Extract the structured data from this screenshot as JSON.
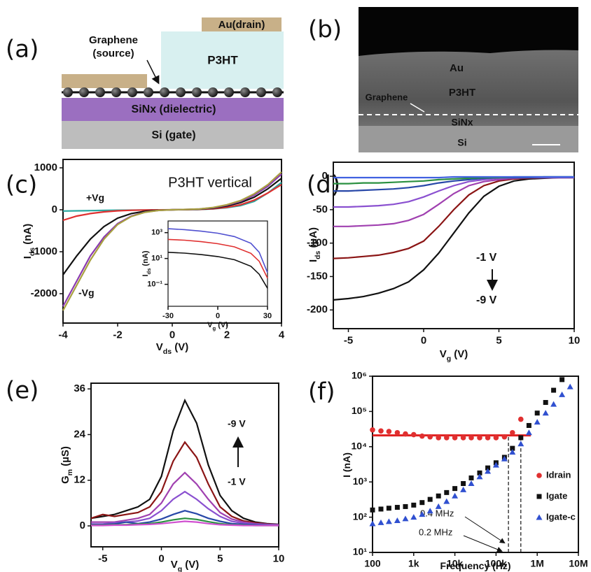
{
  "diagram": {
    "panel": "(a)",
    "drain": "Au(drain)",
    "source": [
      "Graphene",
      "(source)"
    ],
    "organic": "P3HT",
    "dielectric": "SiNx (dielectric)",
    "gate": "Si (gate)"
  },
  "micrograph": {
    "panel": "(b)",
    "layers": [
      "Au",
      "P3HT",
      "Graphene",
      "SiNx",
      "Si"
    ]
  },
  "chart_data": [
    {
      "type": "line",
      "panel": "(c)",
      "xlabel": [
        "V",
        "ds",
        " (V)"
      ],
      "ylabel": [
        "I",
        "ds",
        " (nA)"
      ],
      "annotations": [
        "P3HT vertical",
        "+Vg",
        "-Vg"
      ],
      "x": [
        -4,
        -3.5,
        -3,
        -2.5,
        -2,
        -1.5,
        -1,
        -0.5,
        0,
        0.5,
        1,
        1.5,
        2,
        2.5,
        3,
        3.5,
        4
      ],
      "xlim": [
        -4,
        4
      ],
      "xticks": [
        -4,
        -2,
        0,
        2,
        4
      ],
      "ylim": [
        -2700,
        1200
      ],
      "yticks": [
        -2000,
        -1000,
        0,
        1000
      ],
      "series": [
        {
          "color": "#2aa8a0",
          "values": [
            -30,
            -25,
            -20,
            -15,
            -10,
            -8,
            -5,
            -3,
            0,
            3,
            8,
            20,
            50,
            100,
            200,
            400,
            650
          ]
        },
        {
          "color": "#e03030",
          "values": [
            -250,
            -150,
            -90,
            -50,
            -25,
            -12,
            -5,
            -2,
            0,
            3,
            10,
            25,
            60,
            120,
            230,
            400,
            600
          ]
        },
        {
          "color": "#111111",
          "values": [
            -1550,
            -1100,
            -700,
            -400,
            -200,
            -90,
            -35,
            -10,
            0,
            5,
            15,
            40,
            90,
            170,
            300,
            500,
            750
          ]
        },
        {
          "color": "#8a3ab0",
          "values": [
            -2300,
            -1700,
            -1100,
            -650,
            -330,
            -150,
            -55,
            -15,
            0,
            8,
            20,
            50,
            110,
            200,
            350,
            560,
            850
          ]
        },
        {
          "color": "#a8a040",
          "values": [
            -2400,
            -1800,
            -1200,
            -700,
            -350,
            -160,
            -60,
            -15,
            0,
            8,
            20,
            55,
            120,
            220,
            380,
            600,
            900
          ]
        }
      ]
    },
    {
      "type": "line",
      "log_y": true,
      "xlabel": [
        "V",
        "g",
        " (V)"
      ],
      "ylabel": [
        "I",
        "ds",
        " (nA)"
      ],
      "x": [
        -30,
        -20,
        -10,
        0,
        10,
        20,
        25,
        30
      ],
      "xlim": [
        -30,
        30
      ],
      "xticks": [
        -30,
        0,
        30
      ],
      "ylim": [
        0.002,
        8000
      ],
      "yticks": [
        {
          "value": 0.1,
          "label": "10⁻¹"
        },
        {
          "value": 10,
          "label": "10¹"
        },
        {
          "value": 1000,
          "label": "10³"
        }
      ],
      "series": [
        {
          "color": "#5050d0",
          "values": [
            2000,
            1700,
            1300,
            900,
            500,
            150,
            30,
            0.8
          ]
        },
        {
          "color": "#e03030",
          "values": [
            300,
            260,
            200,
            140,
            80,
            25,
            6,
            0.3
          ]
        },
        {
          "color": "#111111",
          "values": [
            30,
            26,
            20,
            14,
            8,
            2.5,
            0.6,
            0.05
          ]
        }
      ]
    },
    {
      "type": "line",
      "panel": "(d)",
      "xlabel": [
        "V",
        "g",
        " (V)"
      ],
      "ylabel": [
        "I",
        "ds",
        " (µA)"
      ],
      "annotations": [
        "-1 V",
        "-9 V"
      ],
      "x": [
        -6,
        -5,
        -4,
        -3,
        -2,
        -1,
        0,
        1,
        2,
        3,
        4,
        5,
        6,
        7,
        8,
        9,
        10
      ],
      "xlim": [
        -6,
        10
      ],
      "xticks": [
        -5,
        0,
        5,
        10
      ],
      "ylim": [
        -228,
        21
      ],
      "yticks": [
        -200,
        -150,
        -100,
        -50,
        0
      ],
      "series": [
        {
          "color": "#111111",
          "values": [
            -185,
            -183,
            -180,
            -175,
            -168,
            -158,
            -140,
            -115,
            -85,
            -55,
            -30,
            -15,
            -7,
            -4,
            -3,
            -2,
            -2
          ]
        },
        {
          "color": "#8b1515",
          "values": [
            -123,
            -122,
            -120,
            -118,
            -114,
            -108,
            -97,
            -75,
            -50,
            -28,
            -14,
            -7,
            -4,
            -3,
            -2,
            -2,
            -2
          ]
        },
        {
          "color": "#a040b0",
          "values": [
            -75,
            -75,
            -74,
            -73,
            -71,
            -66,
            -57,
            -42,
            -26,
            -14,
            -8,
            -5,
            -3,
            -2,
            -2,
            -2,
            -2
          ]
        },
        {
          "color": "#8a50d0",
          "values": [
            -46,
            -46,
            -45,
            -44,
            -42,
            -38,
            -31,
            -22,
            -14,
            -8,
            -5,
            -3,
            -2,
            -2,
            -2,
            -2,
            -2
          ]
        },
        {
          "color": "#2848a8",
          "values": [
            -22,
            -22,
            -21,
            -20,
            -19,
            -17,
            -14,
            -10,
            -7,
            -5,
            -3,
            -2,
            -2,
            -2,
            -1,
            -1,
            -1
          ]
        },
        {
          "color": "#2a9040",
          "values": [
            -11,
            -11,
            -10,
            -10,
            -9,
            -8,
            -7,
            -5,
            -4,
            -3,
            -2,
            -2,
            -1,
            -1,
            -1,
            -1,
            -1
          ]
        },
        {
          "color": "#4060e0",
          "values": [
            -2,
            -2,
            -2,
            -2,
            -2,
            -2,
            -2,
            -2,
            -1,
            -1,
            -1,
            -1,
            -1,
            -1,
            -1,
            -1,
            -1
          ]
        }
      ]
    },
    {
      "type": "line",
      "panel": "(e)",
      "xlabel": [
        "V",
        "g",
        " (V)"
      ],
      "ylabel": [
        "G",
        "m",
        " (µS)"
      ],
      "annotations": [
        "-9 V",
        "-1 V"
      ],
      "x": [
        -6,
        -5,
        -4,
        -3,
        -2,
        -1,
        0,
        1,
        2,
        3,
        4,
        5,
        6,
        7,
        8,
        9,
        10
      ],
      "xlim": [
        -6,
        10
      ],
      "xticks": [
        -5,
        0,
        5,
        10
      ],
      "ylim": [
        -5.5,
        37.5
      ],
      "yticks": [
        0,
        12,
        24,
        36
      ],
      "series": [
        {
          "color": "#111111",
          "values": [
            2,
            2.5,
            3,
            4,
            5,
            7,
            13,
            25,
            33,
            27,
            16,
            8,
            4,
            2,
            1,
            0.6,
            0.4
          ]
        },
        {
          "color": "#8b1515",
          "values": [
            2,
            3,
            2.5,
            3,
            3.5,
            5,
            9,
            17,
            22,
            18,
            11,
            5,
            2.5,
            1.3,
            0.8,
            0.5,
            0.3
          ]
        },
        {
          "color": "#a040b0",
          "values": [
            1,
            1,
            1,
            1.5,
            2,
            3,
            6,
            11,
            14,
            11,
            7,
            3.5,
            1.8,
            1,
            0.6,
            0.4,
            0.3
          ]
        },
        {
          "color": "#8a50d0",
          "values": [
            0.5,
            0.5,
            0.8,
            1,
            1.3,
            2,
            4,
            7,
            9,
            7,
            4.5,
            2.5,
            1.2,
            0.7,
            0.4,
            0.3,
            0.2
          ]
        },
        {
          "color": "#2848a8",
          "values": [
            0.3,
            0.3,
            0.5,
            1,
            0.6,
            1,
            1.8,
            3,
            4,
            3.2,
            2,
            1.2,
            0.6,
            0.4,
            0.3,
            0.2,
            0.1
          ]
        },
        {
          "color": "#2a9040",
          "values": [
            0.2,
            0.2,
            0.3,
            0.3,
            0.5,
            0.6,
            1,
            1.6,
            2,
            1.7,
            1.1,
            0.6,
            0.3,
            0.2,
            0.1,
            0.1,
            0.1
          ]
        },
        {
          "color": "#d050d0",
          "values": [
            0.1,
            0.1,
            0.2,
            0.2,
            0.3,
            0.4,
            0.6,
            0.9,
            1.2,
            1,
            0.6,
            0.3,
            0.2,
            0.1,
            0.1,
            0.1,
            0.1
          ]
        }
      ]
    },
    {
      "type": "scatter",
      "panel": "(f)",
      "log_x": true,
      "log_y": true,
      "xlabel": [
        "Frequency (Hz)"
      ],
      "ylabel": [
        "I (nA)"
      ],
      "xlim": [
        100,
        10000000
      ],
      "xticks": [
        {
          "value": 100,
          "label": "100"
        },
        {
          "value": 1000,
          "label": "1k"
        },
        {
          "value": 10000,
          "label": "10k"
        },
        {
          "value": 100000,
          "label": "100k"
        },
        {
          "value": 1000000,
          "label": "1M"
        },
        {
          "value": 10000000,
          "label": "10M"
        }
      ],
      "ylim": [
        10,
        1000000
      ],
      "yticks": [
        {
          "value": 10,
          "label": "10¹"
        },
        {
          "value": 100,
          "label": "10²"
        },
        {
          "value": 1000,
          "label": "10³"
        },
        {
          "value": 10000,
          "label": "10⁴"
        },
        {
          "value": 100000,
          "label": "10⁵"
        },
        {
          "value": 1000000,
          "label": "10⁶"
        }
      ],
      "series": [
        {
          "name": "Idrain",
          "color": "#e03030",
          "marker": "circle",
          "x": [
            100,
            160,
            250,
            400,
            630,
            1000,
            1600,
            2500,
            4000,
            6300,
            10000,
            16000,
            25000,
            40000,
            63000,
            100000,
            160000,
            250000,
            400000
          ],
          "values": [
            30000,
            28000,
            27000,
            25000,
            23000,
            22000,
            20000,
            19000,
            18000,
            18000,
            18000,
            18000,
            18000,
            18000,
            18000,
            18000,
            19000,
            25000,
            60000
          ]
        },
        {
          "name": "Igate",
          "color": "#111111",
          "marker": "square",
          "x": [
            100,
            160,
            250,
            400,
            630,
            1000,
            1600,
            2500,
            4000,
            6300,
            10000,
            16000,
            25000,
            40000,
            63000,
            100000,
            160000,
            250000,
            400000,
            630000,
            1000000,
            1600000,
            2500000,
            4000000
          ],
          "values": [
            160,
            170,
            180,
            190,
            200,
            220,
            260,
            320,
            400,
            500,
            650,
            900,
            1300,
            1800,
            2500,
            3500,
            5000,
            9000,
            18000,
            40000,
            90000,
            180000,
            400000,
            800000
          ]
        },
        {
          "name": "Igate-c",
          "color": "#3050d0",
          "marker": "triangle",
          "x": [
            100,
            160,
            250,
            400,
            630,
            1000,
            1600,
            2500,
            4000,
            6300,
            10000,
            16000,
            25000,
            40000,
            63000,
            100000,
            160000,
            250000,
            400000,
            630000,
            1000000,
            1600000,
            2500000,
            4000000,
            6300000
          ],
          "values": [
            65,
            70,
            75,
            80,
            90,
            100,
            120,
            150,
            200,
            280,
            400,
            600,
            900,
            1400,
            2000,
            3000,
            4500,
            7000,
            12000,
            25000,
            50000,
            90000,
            160000,
            300000,
            500000
          ]
        }
      ],
      "fit": {
        "color": "#e02020",
        "x": [
          100,
          700000
        ],
        "values": [
          21000,
          21000
        ]
      },
      "markers": [
        {
          "x": 400000,
          "label": "0.4 MHz"
        },
        {
          "x": 200000,
          "label": "0.2 MHz"
        }
      ]
    }
  ]
}
